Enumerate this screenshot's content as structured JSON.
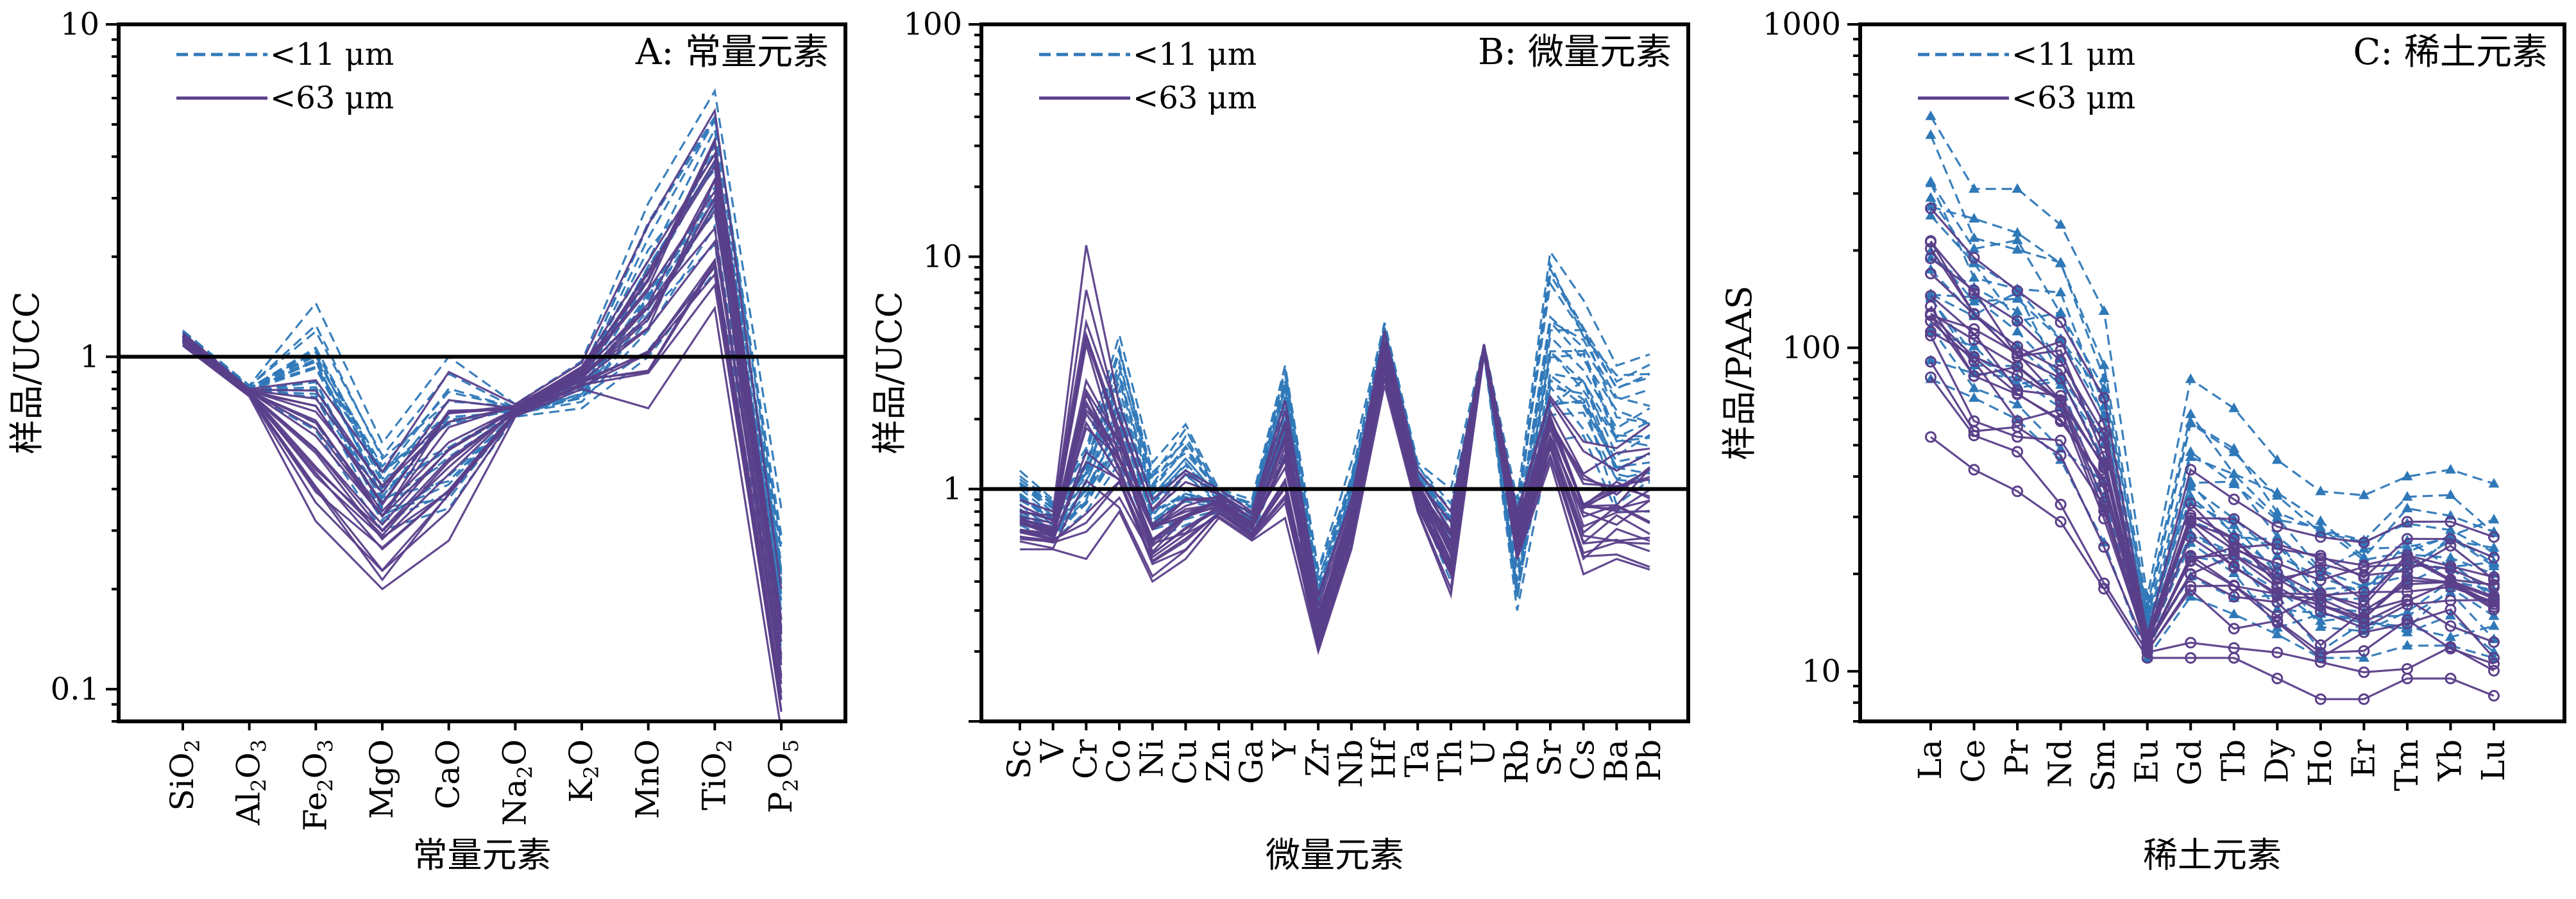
{
  "colors": {
    "fine": "#2f78b8",
    "coarse": "#5a3f8a",
    "axis": "#000000",
    "reference": "#000000"
  },
  "chart_data": [
    {
      "type": "line",
      "title": "A: 常量元素",
      "xlabel": "常量元素",
      "ylabel": "样品/UCC",
      "yscale": "log",
      "ylim": [
        0.08,
        10
      ],
      "yticks": [
        0.1,
        1,
        10
      ],
      "ytick_labels": [
        "0.1",
        "1",
        "10"
      ],
      "reference_line": 1,
      "legend_position": "top-left",
      "categories": [
        {
          "base": "SiO",
          "sub": "2"
        },
        {
          "base": "Al",
          "sub": "2",
          "base2": "O",
          "sub2": "3"
        },
        {
          "base": "Fe",
          "sub": "2",
          "base2": "O",
          "sub2": "3"
        },
        {
          "base": "MgO"
        },
        {
          "base": "CaO"
        },
        {
          "base": "Na",
          "sub": "2",
          "base2": "O"
        },
        {
          "base": "K",
          "sub": "2",
          "base2": "O"
        },
        {
          "base": "MnO"
        },
        {
          "base": "TiO",
          "sub": "2"
        },
        {
          "base": "P",
          "sub": "2",
          "base2": "O",
          "sub2": "5"
        }
      ],
      "series": [
        {
          "name": "<11 μm",
          "style": "dashed",
          "marker": "none",
          "ranges": [
            [
              1.1,
              1.2
            ],
            [
              0.78,
              0.82
            ],
            [
              0.6,
              1.45
            ],
            [
              0.3,
              0.55
            ],
            [
              0.35,
              1.0
            ],
            [
              0.66,
              0.72
            ],
            [
              0.7,
              0.97
            ],
            [
              1.0,
              2.9
            ],
            [
              1.8,
              6.3
            ],
            [
              0.12,
              0.35
            ]
          ]
        },
        {
          "name": "<63 μm",
          "style": "solid",
          "marker": "none",
          "ranges": [
            [
              1.08,
              1.18
            ],
            [
              0.76,
              0.8
            ],
            [
              0.32,
              0.85
            ],
            [
              0.2,
              0.45
            ],
            [
              0.28,
              0.9
            ],
            [
              0.66,
              0.72
            ],
            [
              0.8,
              0.96
            ],
            [
              0.7,
              2.5
            ],
            [
              1.4,
              5.5
            ],
            [
              0.075,
              0.2
            ]
          ]
        }
      ]
    },
    {
      "type": "line",
      "title": "B: 微量元素",
      "xlabel": "微量元素",
      "ylabel": "样品/UCC",
      "yscale": "log",
      "ylim": [
        0.1,
        100
      ],
      "yticks": [
        1,
        10,
        100
      ],
      "ytick_labels": [
        "1",
        "10",
        "100"
      ],
      "reference_line": 1,
      "legend_position": "top-left",
      "categories": [
        "Sc",
        "V",
        "Cr",
        "Co",
        "Ni",
        "Cu",
        "Zn",
        "Ga",
        "Y",
        "Zr",
        "Nb",
        "Hf",
        "Ta",
        "Th",
        "U",
        "Rb",
        "Sr",
        "Cs",
        "Ba",
        "Pb"
      ],
      "series": [
        {
          "name": "<11 μm",
          "style": "dashed",
          "marker": "none",
          "ranges": [
            [
              0.7,
              1.2
            ],
            [
              0.6,
              0.9
            ],
            [
              0.8,
              1.5
            ],
            [
              1.3,
              4.6
            ],
            [
              0.6,
              1.3
            ],
            [
              0.7,
              1.9
            ],
            [
              0.8,
              1.0
            ],
            [
              0.62,
              0.9
            ],
            [
              1.5,
              3.4
            ],
            [
              0.2,
              0.45
            ],
            [
              0.6,
              1.3
            ],
            [
              3.0,
              5.2
            ],
            [
              0.9,
              1.3
            ],
            [
              0.4,
              1.0
            ],
            [
              3.8,
              4.2
            ],
            [
              0.3,
              0.9
            ],
            [
              1.6,
              10.5
            ],
            [
              1.7,
              6.5
            ],
            [
              0.8,
              3.4
            ],
            [
              0.8,
              3.8
            ]
          ]
        },
        {
          "name": "<63 μm",
          "style": "solid",
          "marker": "none",
          "ranges": [
            [
              0.55,
              0.9
            ],
            [
              0.55,
              0.8
            ],
            [
              0.5,
              11.2
            ],
            [
              0.8,
              2.3
            ],
            [
              0.4,
              0.9
            ],
            [
              0.5,
              1.2
            ],
            [
              0.75,
              1.0
            ],
            [
              0.6,
              0.8
            ],
            [
              0.75,
              2.4
            ],
            [
              0.2,
              0.35
            ],
            [
              0.55,
              0.9
            ],
            [
              2.8,
              4.8
            ],
            [
              0.8,
              1.2
            ],
            [
              0.35,
              0.8
            ],
            [
              3.8,
              4.2
            ],
            [
              0.5,
              0.8
            ],
            [
              1.3,
              2.5
            ],
            [
              0.43,
              1.6
            ],
            [
              0.5,
              1.5
            ],
            [
              0.45,
              1.9
            ]
          ]
        }
      ]
    },
    {
      "type": "line",
      "title": "C: 稀土元素",
      "xlabel": "稀土元素",
      "ylabel": "样品/PAAS",
      "yscale": "log",
      "ylim": [
        7,
        1000
      ],
      "yticks": [
        10,
        100,
        1000
      ],
      "ytick_labels": [
        "10",
        "100",
        "1000"
      ],
      "legend_position": "top-left",
      "categories": [
        "La",
        "Ce",
        "Pr",
        "Nd",
        "Sm",
        "Eu",
        "Gd",
        "Tb",
        "Dy",
        "Ho",
        "Er",
        "Tm",
        "Yb",
        "Lu"
      ],
      "series": [
        {
          "name": "<11 μm",
          "style": "dashed",
          "marker": "triangle",
          "ranges": [
            [
              80,
              520
            ],
            [
              70,
              310
            ],
            [
              60,
              310
            ],
            [
              45,
              240
            ],
            [
              25,
              130
            ],
            [
              11,
              17
            ],
            [
              17,
              80
            ],
            [
              15,
              65
            ],
            [
              13,
              45
            ],
            [
              11,
              36
            ],
            [
              11,
              35
            ],
            [
              12,
              40
            ],
            [
              12,
              42
            ],
            [
              11,
              38
            ]
          ]
        },
        {
          "name": "<63 μm",
          "style": "solid",
          "marker": "circle",
          "ranges": [
            [
              53,
              270
            ],
            [
              42,
              190
            ],
            [
              36,
              150
            ],
            [
              29,
              120
            ],
            [
              18,
              70
            ],
            [
              11,
              13
            ],
            [
              11,
              42
            ],
            [
              11,
              34
            ],
            [
              9.5,
              28
            ],
            [
              8.2,
              26
            ],
            [
              8.2,
              25
            ],
            [
              9.5,
              29
            ],
            [
              9.5,
              29
            ],
            [
              8.4,
              26
            ]
          ]
        }
      ]
    }
  ]
}
